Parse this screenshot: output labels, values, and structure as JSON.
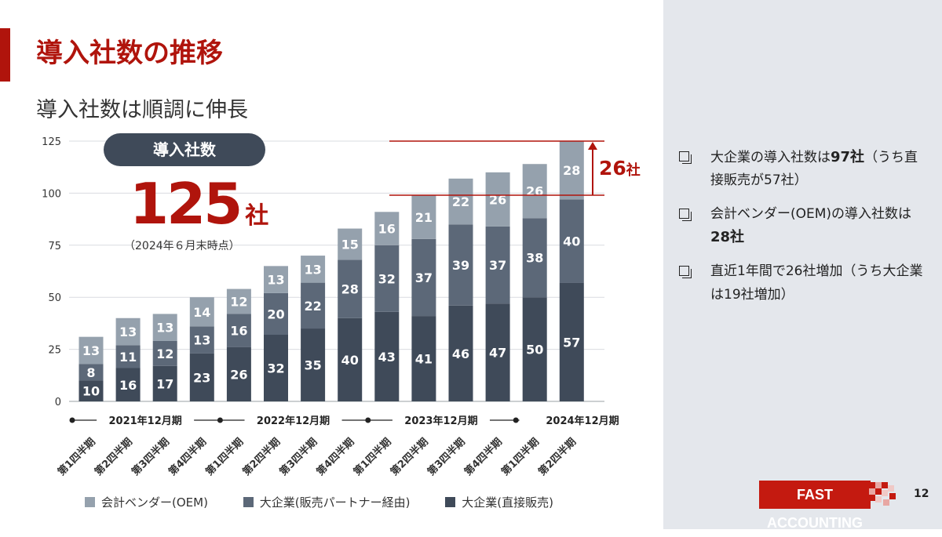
{
  "slide": {
    "title": "導入社数の推移",
    "subtitle": "導入社数は順調に伸長",
    "page_number": "12"
  },
  "highlight": {
    "pill_label": "導入社数",
    "total": "125",
    "unit": "社",
    "note": "（2024年６月末時点）",
    "increase_value": "26",
    "increase_unit": "社"
  },
  "bullets": [
    {
      "pre": "大企業の導入社数は",
      "bold": "97社",
      "post": "（うち直接販売が57社）"
    },
    {
      "pre": "会計ベンダー(OEM)の導入社数は",
      "bold": "28社",
      "post": ""
    },
    {
      "pre": "直近1年間で26社増加（うち大企業は19社増加）",
      "bold": "",
      "post": ""
    }
  ],
  "logo": {
    "text": "FAST ACCOUNTING"
  },
  "colors": {
    "accent": "#b0140c",
    "oem": "#95a1ad",
    "partner": "#5c6878",
    "direct": "#3f4a59",
    "panel": "#e4e7ec"
  },
  "chart_data": {
    "type": "bar",
    "stacked": true,
    "categories": [
      "第1四半期",
      "第2四半期",
      "第3四半期",
      "第4四半期",
      "第1四半期",
      "第2四半期",
      "第3四半期",
      "第4四半期",
      "第1四半期",
      "第2四半期",
      "第3四半期",
      "第4四半期",
      "第1四半期",
      "第2四半期"
    ],
    "period_groups": [
      {
        "label": "2021年12月期",
        "start": 0,
        "end": 3
      },
      {
        "label": "2022年12月期",
        "start": 4,
        "end": 7
      },
      {
        "label": "2023年12月期",
        "start": 8,
        "end": 11
      },
      {
        "label": "2024年12月期",
        "start": 12,
        "end": 13
      }
    ],
    "series": [
      {
        "name": "大企業(直接販売)",
        "color": "#3f4a59",
        "values": [
          10,
          16,
          17,
          23,
          26,
          32,
          35,
          40,
          43,
          41,
          46,
          47,
          50,
          57
        ]
      },
      {
        "name": "大企業(販売パートナー経由)",
        "color": "#5c6878",
        "values": [
          8,
          11,
          12,
          13,
          16,
          20,
          22,
          28,
          32,
          37,
          39,
          37,
          38,
          40
        ]
      },
      {
        "name": "会計ベンダー(OEM)",
        "color": "#95a1ad",
        "values": [
          13,
          13,
          13,
          14,
          12,
          13,
          13,
          15,
          16,
          21,
          22,
          26,
          26,
          28
        ]
      }
    ],
    "legend_order": [
      "会計ベンダー(OEM)",
      "大企業(販売パートナー経由)",
      "大企業(直接販売)"
    ],
    "legend_position": "bottom",
    "yticks": [
      "0",
      "25",
      "50",
      "75",
      "100",
      "125"
    ],
    "ylim": [
      0,
      125
    ],
    "grid": true
  }
}
